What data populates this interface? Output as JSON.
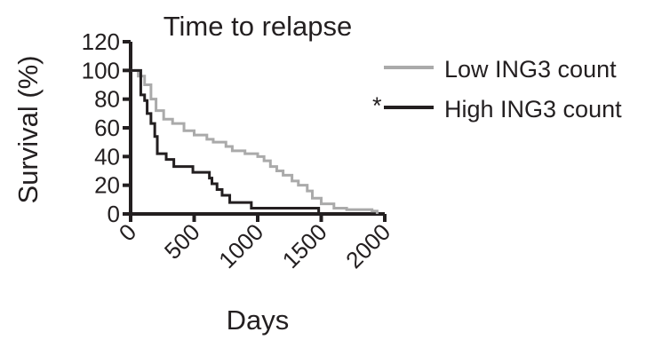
{
  "chart_data": {
    "type": "line",
    "title": "Time to relapse",
    "xlabel": "Days",
    "ylabel": "Survival (%)",
    "xlim": [
      0,
      2000
    ],
    "ylim": [
      0,
      120
    ],
    "x_ticks": [
      0,
      500,
      1000,
      1500,
      2000
    ],
    "y_ticks": [
      0,
      20,
      40,
      60,
      80,
      100,
      120
    ],
    "grid": false,
    "legend_position": "right",
    "series": [
      {
        "name": "Low ING3 count",
        "color": "#aaaaaa",
        "step": true,
        "x": [
          0,
          60,
          110,
          160,
          200,
          260,
          330,
          420,
          500,
          600,
          650,
          750,
          800,
          900,
          1000,
          1050,
          1100,
          1150,
          1200,
          1270,
          1320,
          1390,
          1430,
          1500,
          1600,
          1700,
          1900,
          1940
        ],
        "y": [
          100,
          96,
          90,
          80,
          72,
          66,
          63,
          58,
          55,
          52,
          50,
          47,
          44,
          42,
          40,
          37,
          33,
          30,
          27,
          23,
          20,
          16,
          11,
          7,
          4,
          3,
          2,
          0
        ]
      },
      {
        "name": "High ING3 count",
        "color": "#231f20",
        "step": true,
        "annotation": "*",
        "x": [
          0,
          80,
          110,
          130,
          160,
          190,
          210,
          280,
          340,
          490,
          620,
          640,
          680,
          720,
          780,
          950,
          1480
        ],
        "y": [
          100,
          83,
          79,
          70,
          63,
          54,
          42,
          38,
          33,
          29,
          25,
          21,
          17,
          13,
          8,
          4,
          0
        ]
      }
    ]
  }
}
